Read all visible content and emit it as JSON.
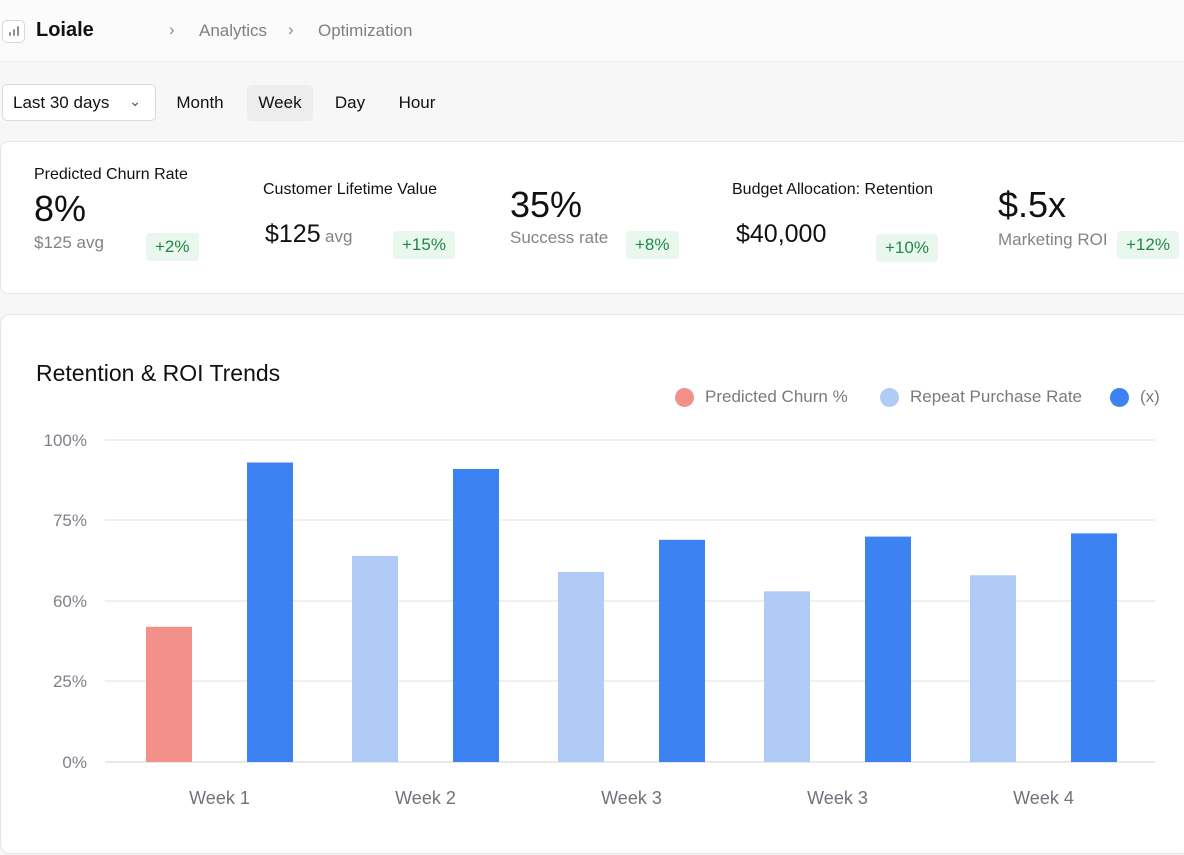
{
  "header": {
    "brand": "Loiale",
    "breadcrumb": [
      "Analytics",
      "Optimization"
    ]
  },
  "controls": {
    "range_label": "Last 30 days",
    "granularity": [
      "Month",
      "Week",
      "Day",
      "Hour"
    ],
    "active_granularity": "Week"
  },
  "kpis": [
    {
      "label": "Predicted Churn Rate",
      "value": "8%",
      "sub": "$125 avg",
      "change": "+2%"
    },
    {
      "label": "Customer Lifetime Value",
      "value": "$125",
      "value_suffix": "avg",
      "change": "+15%"
    },
    {
      "label": "",
      "value": "35%",
      "sub": "Success rate",
      "change": "+8%"
    },
    {
      "label": "Budget Allocation: Retention",
      "value": "$40,000",
      "change": "+10%"
    },
    {
      "label": "",
      "value": "$.5x",
      "sub": "Marketing ROI",
      "change": "+12%"
    }
  ],
  "colors": {
    "churn": "#f4908a",
    "repeat": "#afcbf6",
    "roi": "#3d82f2",
    "positive_badge_bg": "#eaf7ee",
    "positive_badge_text": "#1f8a43"
  },
  "chart_data": {
    "type": "bar",
    "title": "Retention & ROI Trends",
    "legend": [
      "Predicted Churn %",
      "Repeat Purchase Rate",
      "(x)"
    ],
    "legend_position": "top-right",
    "y_ticks": [
      "0%",
      "25%",
      "60%",
      "75%",
      "100%"
    ],
    "grid": true,
    "groups": [
      {
        "label": "Week 1",
        "bars": [
          {
            "series": "Predicted Churn %",
            "value": 42
          },
          {
            "series": "(x)",
            "value": 93
          }
        ]
      },
      {
        "label": "Week 2",
        "bars": [
          {
            "series": "Repeat Purchase Rate",
            "value": 64
          },
          {
            "series": "(x)",
            "value": 91
          }
        ]
      },
      {
        "label": "Week 3",
        "bars": [
          {
            "series": "Repeat Purchase Rate",
            "value": 59
          },
          {
            "series": "(x)",
            "value": 69
          }
        ]
      },
      {
        "label": "Week 3",
        "bars": [
          {
            "series": "Repeat Purchase Rate",
            "value": 53
          },
          {
            "series": "(x)",
            "value": 70
          }
        ]
      },
      {
        "label": "Week 4",
        "bars": [
          {
            "series": "Repeat Purchase Rate",
            "value": 58
          },
          {
            "series": "(x)",
            "value": 71
          }
        ]
      }
    ]
  }
}
